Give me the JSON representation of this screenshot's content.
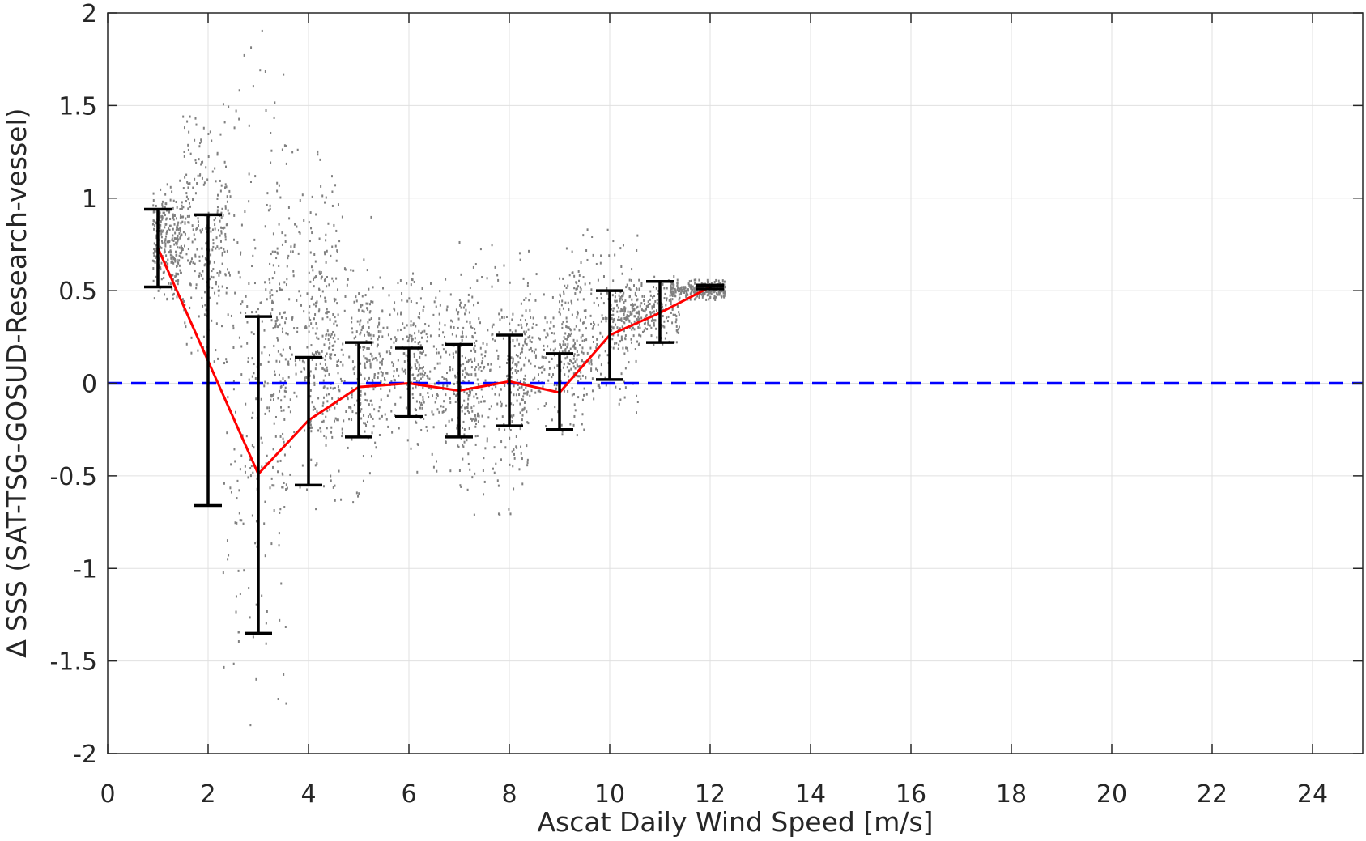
{
  "chart_data": {
    "type": "scatter",
    "title": "",
    "xlabel": "Ascat Daily Wind Speed [m/s]",
    "ylabel": "∆ SSS (SAT-TSG-GOSUD-Research-vessel)",
    "xlim": [
      0,
      25
    ],
    "ylim": [
      -2,
      2
    ],
    "x_ticks": [
      0,
      2,
      4,
      6,
      8,
      10,
      12,
      14,
      16,
      18,
      20,
      22,
      24
    ],
    "y_ticks": [
      -2,
      -1.5,
      -1,
      -0.5,
      0,
      0.5,
      1,
      1.5,
      2
    ],
    "x_tick_labels": [
      "0",
      "2",
      "4",
      "6",
      "8",
      "10",
      "12",
      "14",
      "16",
      "18",
      "20",
      "22",
      "24"
    ],
    "y_tick_labels": [
      "-2",
      "-1.5",
      "-1",
      "-0.5",
      "0",
      "0.5",
      "1",
      "1.5",
      "2"
    ],
    "grid": true,
    "colors": {
      "scatter": "#808080",
      "mean_line": "#ff0000",
      "error_bars": "#000000",
      "zero_line": "#0000ff",
      "grid": "#e0e0e0",
      "axes": "#262626"
    },
    "zero_line": {
      "y": 0,
      "style": "dashed"
    },
    "mean_with_error": {
      "x": [
        1,
        2,
        3,
        4,
        5,
        6,
        7,
        8,
        9,
        10,
        11,
        12
      ],
      "mean": [
        0.73,
        0.12,
        -0.49,
        -0.2,
        -0.02,
        0.0,
        -0.04,
        0.01,
        -0.05,
        0.26,
        0.38,
        0.52
      ],
      "lower": [
        0.52,
        -0.66,
        -1.35,
        -0.55,
        -0.29,
        -0.18,
        -0.29,
        -0.23,
        -0.25,
        0.02,
        0.22,
        0.51
      ],
      "upper": [
        0.94,
        0.91,
        0.36,
        0.14,
        0.22,
        0.19,
        0.21,
        0.26,
        0.16,
        0.5,
        0.55,
        0.53
      ]
    },
    "scatter_clusters": [
      {
        "x": [
          0.9,
          1.5
        ],
        "y": [
          0.45,
          1.1
        ]
      },
      {
        "x": [
          1.5,
          2.4
        ],
        "y": [
          0.1,
          1.47
        ]
      },
      {
        "x": [
          2.3,
          3.6
        ],
        "y": [
          -1.87,
          1.98
        ]
      },
      {
        "x": [
          3.2,
          4.6
        ],
        "y": [
          -0.7,
          1.36
        ]
      },
      {
        "x": [
          4.0,
          5.3
        ],
        "y": [
          -0.65,
          0.9
        ]
      },
      {
        "x": [
          5.0,
          6.3
        ],
        "y": [
          -0.35,
          0.6
        ]
      },
      {
        "x": [
          6.0,
          7.4
        ],
        "y": [
          -0.5,
          0.65
        ]
      },
      {
        "x": [
          7.0,
          8.4
        ],
        "y": [
          -0.73,
          0.77
        ]
      },
      {
        "x": [
          8.0,
          9.5
        ],
        "y": [
          -0.3,
          0.6
        ]
      },
      {
        "x": [
          9.0,
          10.6
        ],
        "y": [
          -0.28,
          0.86
        ]
      },
      {
        "x": [
          10.0,
          11.4
        ],
        "y": [
          0.2,
          0.58
        ]
      },
      {
        "x": [
          11.2,
          12.3
        ],
        "y": [
          0.45,
          0.56
        ]
      }
    ]
  }
}
